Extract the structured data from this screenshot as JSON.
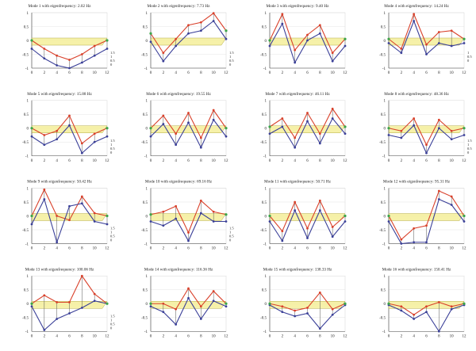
{
  "colors": {
    "red": "#d9412b",
    "blue": "#3a3f98",
    "green": "#3aa64a",
    "plane": "#f5ef9a",
    "planeEdge": "#b5ad4a",
    "axis": "#444444",
    "grid": "#dddddd"
  },
  "chart_data": [
    {
      "type": "line",
      "title": "Mode 1 with eigenfrequency: 2.02 Hz",
      "y_ticks": [
        "1",
        "0.5",
        "0",
        "-0.5",
        "-1"
      ],
      "x_ticks": [
        "0",
        "2",
        "4",
        "6",
        "8",
        "10",
        "12"
      ],
      "z_ticks": [
        "1.5",
        "1",
        "0.5",
        "0"
      ],
      "ylim": [
        -1,
        1
      ],
      "x": [
        0,
        2,
        4,
        6,
        8,
        10,
        12
      ],
      "series": [
        {
          "values": [
            0.0,
            -0.3,
            -0.55,
            -0.7,
            -0.5,
            -0.2,
            0.0
          ]
        },
        {
          "values": [
            -0.3,
            -0.65,
            -0.9,
            -1.0,
            -0.8,
            -0.55,
            -0.3
          ]
        }
      ]
    },
    {
      "type": "line",
      "title": "Mode 2 with eigenfrequency: 7.73 Hz",
      "y_ticks": [
        "1",
        "0.5",
        "0",
        "-0.5",
        "-1"
      ],
      "x_ticks": [
        "0",
        "2",
        "4",
        "6",
        "8",
        "10",
        "12"
      ],
      "z_ticks": [
        "1.5",
        "1",
        "0.5",
        "0"
      ],
      "ylim": [
        -1,
        1
      ],
      "x": [
        0,
        2,
        4,
        6,
        8,
        10,
        12
      ],
      "series": [
        {
          "values": [
            0.25,
            -0.45,
            0.05,
            0.55,
            0.65,
            0.98,
            0.35
          ]
        },
        {
          "values": [
            -0.05,
            -0.75,
            -0.2,
            0.25,
            0.35,
            0.7,
            0.05
          ]
        }
      ]
    },
    {
      "type": "line",
      "title": "Mode 3 with eigenfrequency: 9.40 Hz",
      "y_ticks": [
        "1",
        "0.5",
        "0",
        "-0.5",
        "-1"
      ],
      "x_ticks": [
        "0",
        "2",
        "4",
        "6",
        "8",
        "10",
        "12"
      ],
      "z_ticks": [],
      "ylim": [
        -1,
        1
      ],
      "x": [
        0,
        2,
        4,
        6,
        8,
        10,
        12
      ],
      "series": [
        {
          "values": [
            0.0,
            0.95,
            -0.35,
            0.2,
            0.55,
            -0.45,
            0.05
          ]
        },
        {
          "values": [
            -0.2,
            0.6,
            -0.8,
            0.0,
            0.25,
            -0.75,
            -0.2
          ]
        }
      ]
    },
    {
      "type": "line",
      "title": "Mode 4 with eigenfrequency: 14.24 Hz",
      "y_ticks": [
        "1",
        "0.5",
        "0",
        "-0.5",
        "-1"
      ],
      "x_ticks": [
        "0",
        "2",
        "4",
        "6",
        "8",
        "10",
        "12"
      ],
      "z_ticks": [
        "1",
        "0.5",
        "0"
      ],
      "ylim": [
        -1,
        1
      ],
      "x": [
        0,
        2,
        4,
        6,
        8,
        10,
        12
      ],
      "series": [
        {
          "values": [
            0.05,
            -0.3,
            0.95,
            -0.15,
            0.3,
            0.35,
            0.05
          ]
        },
        {
          "values": [
            -0.1,
            -0.45,
            0.7,
            -0.5,
            -0.1,
            -0.2,
            -0.1
          ]
        }
      ]
    },
    {
      "type": "line",
      "title": "Mode 5 with eigenfrequency: 15.88 Hz",
      "y_ticks": [
        "1",
        "0.5",
        "0",
        "-0.5",
        "-1"
      ],
      "x_ticks": [
        "0",
        "2",
        "4",
        "6",
        "8",
        "10",
        "12"
      ],
      "z_ticks": [
        "1.5",
        "1",
        "0.5",
        "0"
      ],
      "ylim": [
        -1,
        1
      ],
      "x": [
        0,
        2,
        4,
        6,
        8,
        10,
        12
      ],
      "series": [
        {
          "values": [
            0.0,
            -0.25,
            -0.1,
            0.45,
            -0.55,
            -0.2,
            0.0
          ]
        },
        {
          "values": [
            -0.3,
            -0.6,
            -0.4,
            0.1,
            -0.9,
            -0.5,
            -0.3
          ]
        }
      ]
    },
    {
      "type": "line",
      "title": "Mode 6 with eigenfrequency: 19.55 Hz",
      "y_ticks": [
        "1",
        "0.5",
        "0",
        "-0.5",
        "-1"
      ],
      "x_ticks": [
        "0",
        "2",
        "4",
        "6",
        "8",
        "10",
        "12"
      ],
      "z_ticks": [],
      "ylim": [
        -1,
        1
      ],
      "x": [
        0,
        2,
        4,
        6,
        8,
        10,
        12
      ],
      "series": [
        {
          "values": [
            0.0,
            0.45,
            -0.2,
            0.55,
            -0.35,
            0.65,
            0.0
          ]
        },
        {
          "values": [
            -0.3,
            0.15,
            -0.6,
            0.2,
            -0.7,
            0.3,
            -0.3
          ]
        }
      ]
    },
    {
      "type": "line",
      "title": "Mode 7 with eigenfrequency: 46.11 Hz",
      "y_ticks": [
        "1",
        "0.5",
        "0",
        "-0.5",
        "-1"
      ],
      "x_ticks": [
        "0",
        "2",
        "4",
        "6",
        "8",
        "10",
        "12"
      ],
      "z_ticks": [],
      "ylim": [
        -1,
        1
      ],
      "x": [
        0,
        2,
        4,
        6,
        8,
        10,
        12
      ],
      "series": [
        {
          "values": [
            0.05,
            0.35,
            -0.35,
            0.55,
            -0.2,
            0.7,
            0.05
          ]
        },
        {
          "values": [
            -0.2,
            0.05,
            -0.7,
            0.25,
            -0.55,
            0.35,
            -0.2
          ]
        }
      ]
    },
    {
      "type": "line",
      "title": "Mode 8 with eigenfrequency: 48.36 Hz",
      "y_ticks": [
        "1",
        "0.5",
        "0",
        "-0.5",
        "-1"
      ],
      "x_ticks": [
        "0",
        "2",
        "4",
        "6",
        "8",
        "10",
        "12"
      ],
      "z_ticks": [
        "1.5",
        "1",
        "0.5",
        "0"
      ],
      "ylim": [
        -1,
        1
      ],
      "x": [
        0,
        2,
        4,
        6,
        8,
        10,
        12
      ],
      "series": [
        {
          "values": [
            0.0,
            -0.1,
            0.35,
            -0.6,
            0.3,
            -0.1,
            0.0
          ]
        },
        {
          "values": [
            -0.25,
            -0.35,
            0.1,
            -0.9,
            0.0,
            -0.4,
            -0.25
          ]
        }
      ]
    },
    {
      "type": "line",
      "title": "Mode 9 with eigenfrequency: 50.42 Hz",
      "y_ticks": [
        "1",
        "0.5",
        "0",
        "-0.5",
        "-1"
      ],
      "x_ticks": [
        "0",
        "2",
        "4",
        "6",
        "8",
        "10",
        "12"
      ],
      "z_ticks": [
        "1.5",
        "1",
        "0.5",
        "0"
      ],
      "ylim": [
        -1,
        1
      ],
      "x": [
        0,
        2,
        4,
        6,
        8,
        10,
        12
      ],
      "series": [
        {
          "values": [
            0.0,
            0.95,
            0.0,
            -0.15,
            0.7,
            0.1,
            0.0
          ]
        },
        {
          "values": [
            -0.3,
            0.6,
            -0.95,
            0.35,
            0.45,
            -0.2,
            -0.3
          ]
        }
      ]
    },
    {
      "type": "line",
      "title": "Mode 10 with eigenfrequency: 69.16 Hz",
      "y_ticks": [
        "1",
        "0.5",
        "0",
        "-0.5",
        "-1"
      ],
      "x_ticks": [
        "0",
        "2",
        "4",
        "6",
        "8",
        "10",
        "12"
      ],
      "z_ticks": [
        "1.5",
        "1",
        "0.5",
        "0"
      ],
      "ylim": [
        -1,
        1
      ],
      "x": [
        0,
        2,
        4,
        6,
        8,
        10,
        12
      ],
      "series": [
        {
          "values": [
            0.05,
            0.15,
            0.35,
            -0.6,
            0.55,
            0.15,
            0.05
          ]
        },
        {
          "values": [
            -0.2,
            -0.35,
            -0.1,
            -0.9,
            0.1,
            -0.2,
            -0.2
          ]
        }
      ]
    },
    {
      "type": "line",
      "title": "Mode 11 with eigenfrequency: 50.71 Hz",
      "y_ticks": [
        "1",
        "0.5",
        "0",
        "-0.5",
        "-1"
      ],
      "x_ticks": [
        "0",
        "2",
        "4",
        "6",
        "8",
        "10",
        "12"
      ],
      "z_ticks": [],
      "ylim": [
        -1,
        1
      ],
      "x": [
        0,
        2,
        4,
        6,
        8,
        10,
        12
      ],
      "series": [
        {
          "values": [
            0.0,
            -0.55,
            0.5,
            -0.45,
            0.55,
            -0.4,
            0.0
          ]
        },
        {
          "values": [
            -0.2,
            -0.9,
            0.2,
            -0.8,
            0.2,
            -0.75,
            -0.2
          ]
        }
      ]
    },
    {
      "type": "line",
      "title": "Mode 12 with eigenfrequency: 95.31 Hz",
      "y_ticks": [
        "1",
        "0.5",
        "0",
        "-0.5",
        "-1"
      ],
      "x_ticks": [
        "0",
        "2",
        "4",
        "6",
        "8",
        "10",
        "12"
      ],
      "z_ticks": [],
      "ylim": [
        -1,
        1
      ],
      "x": [
        0,
        2,
        4,
        6,
        8,
        10,
        12
      ],
      "series": [
        {
          "values": [
            0.0,
            -0.85,
            -0.45,
            -0.35,
            0.9,
            0.7,
            0.0
          ]
        },
        {
          "values": [
            -0.2,
            -1.0,
            -0.95,
            -0.95,
            0.6,
            0.4,
            -0.2
          ]
        }
      ]
    },
    {
      "type": "line",
      "title": "Mode 13 with eigenfrequency: 100.06 Hz",
      "y_ticks": [
        "1",
        "0.5",
        "0",
        "-0.5",
        "-1"
      ],
      "x_ticks": [
        "0",
        "2",
        "4",
        "6",
        "8",
        "10",
        "12"
      ],
      "z_ticks": [
        "1.5",
        "1",
        "0.5",
        "0"
      ],
      "ylim": [
        -1,
        1
      ],
      "x": [
        0,
        2,
        4,
        6,
        8,
        10,
        12
      ],
      "series": [
        {
          "values": [
            0.0,
            0.3,
            0.05,
            0.05,
            1.0,
            0.35,
            0.0
          ]
        },
        {
          "values": [
            -0.1,
            -0.95,
            -0.55,
            -0.35,
            -0.15,
            0.1,
            0.0
          ]
        }
      ]
    },
    {
      "type": "line",
      "title": "Mode 14 with eigenfrequency: 116.36 Hz",
      "y_ticks": [
        "1",
        "0.5",
        "0",
        "-0.5",
        "-1"
      ],
      "x_ticks": [
        "0",
        "2",
        "4",
        "6",
        "8",
        "10",
        "12"
      ],
      "z_ticks": [],
      "ylim": [
        -1,
        1
      ],
      "x": [
        0,
        2,
        4,
        6,
        8,
        10,
        12
      ],
      "series": [
        {
          "values": [
            0.0,
            0.0,
            -0.2,
            0.55,
            -0.1,
            0.45,
            0.0
          ]
        },
        {
          "values": [
            -0.1,
            -0.3,
            -0.75,
            0.2,
            -0.55,
            0.1,
            -0.1
          ]
        }
      ]
    },
    {
      "type": "line",
      "title": "Mode 15 with eigenfrequency: 138.33 Hz",
      "y_ticks": [
        "1",
        "0.5",
        "0",
        "-0.5",
        "-1"
      ],
      "x_ticks": [
        "0",
        "2",
        "4",
        "6",
        "8",
        "10",
        "12"
      ],
      "z_ticks": [],
      "ylim": [
        -1,
        1
      ],
      "x": [
        0,
        2,
        4,
        6,
        8,
        10,
        12
      ],
      "series": [
        {
          "values": [
            0.0,
            -0.1,
            -0.25,
            -0.15,
            0.4,
            -0.2,
            0.0
          ]
        },
        {
          "values": [
            -0.05,
            -0.3,
            -0.45,
            -0.35,
            -0.9,
            -0.4,
            -0.05
          ]
        }
      ]
    },
    {
      "type": "line",
      "title": "Mode 16 with eigenfrequency: 150.41 Hz",
      "y_ticks": [
        "1",
        "0.5",
        "0",
        "-0.5",
        "-1"
      ],
      "x_ticks": [
        "0",
        "2",
        "4",
        "6",
        "8",
        "10",
        "12"
      ],
      "z_ticks": [],
      "ylim": [
        -1,
        1
      ],
      "x": [
        0,
        2,
        4,
        6,
        8,
        10,
        12
      ],
      "series": [
        {
          "values": [
            0.0,
            -0.1,
            -0.4,
            -0.1,
            0.05,
            -0.1,
            0.0
          ]
        },
        {
          "values": [
            -0.05,
            -0.25,
            -0.55,
            -0.3,
            -1.0,
            -0.2,
            -0.05
          ]
        }
      ]
    }
  ]
}
